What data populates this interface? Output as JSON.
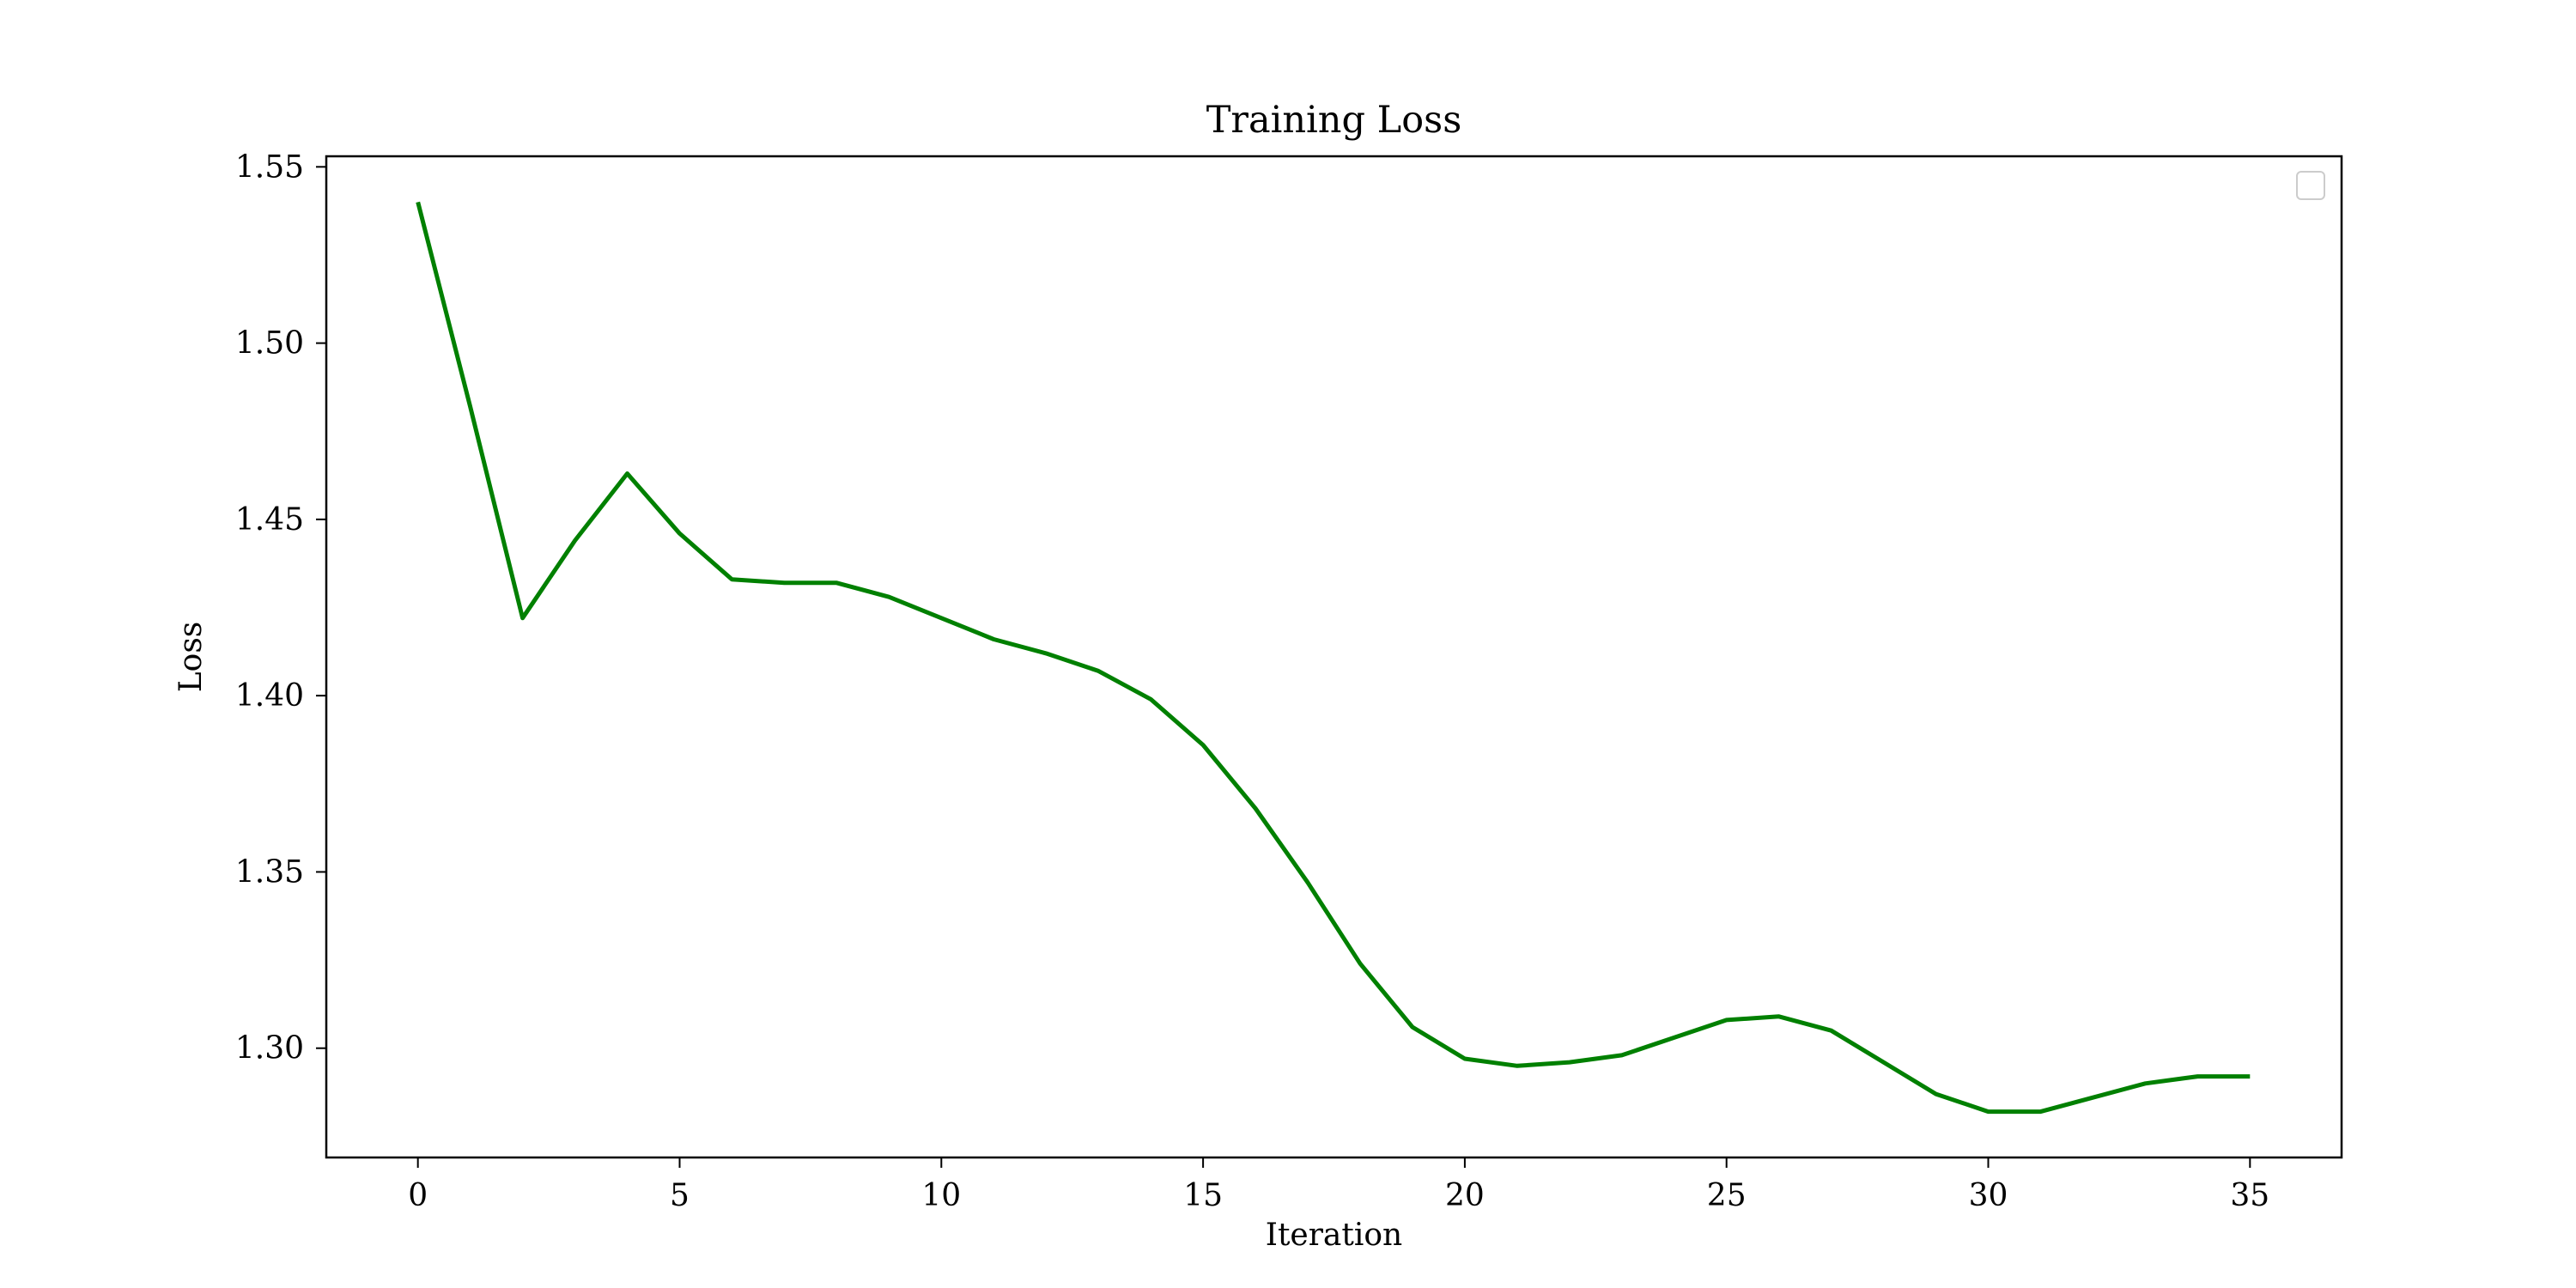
{
  "chart_data": {
    "type": "line",
    "title": "Training Loss",
    "xlabel": "Iteration",
    "ylabel": "Loss",
    "xlim": [
      -1.75,
      36.75
    ],
    "ylim": [
      1.269,
      1.553
    ],
    "xticks": [
      0,
      5,
      10,
      15,
      20,
      25,
      30,
      35
    ],
    "yticks": [
      1.3,
      1.35,
      1.4,
      1.45,
      1.5,
      1.55
    ],
    "ytick_labels": [
      "1.30",
      "1.35",
      "1.40",
      "1.45",
      "1.50",
      "1.55"
    ],
    "grid": false,
    "legend": {
      "shown": true,
      "placement": "top-right",
      "entries": []
    },
    "series": [
      {
        "color": "#008000",
        "x": [
          0,
          1,
          2,
          3,
          4,
          5,
          6,
          7,
          8,
          9,
          10,
          11,
          12,
          13,
          14,
          15,
          16,
          17,
          18,
          19,
          20,
          21,
          22,
          23,
          24,
          25,
          26,
          27,
          28,
          29,
          30,
          31,
          32,
          33,
          34,
          35
        ],
        "y": [
          1.54,
          1.482,
          1.422,
          1.444,
          1.463,
          1.446,
          1.433,
          1.432,
          1.432,
          1.428,
          1.422,
          1.416,
          1.412,
          1.407,
          1.399,
          1.386,
          1.368,
          1.347,
          1.324,
          1.306,
          1.297,
          1.295,
          1.296,
          1.298,
          1.303,
          1.308,
          1.309,
          1.305,
          1.296,
          1.287,
          1.282,
          1.282,
          1.286,
          1.29,
          1.292,
          1.292
        ]
      }
    ]
  }
}
